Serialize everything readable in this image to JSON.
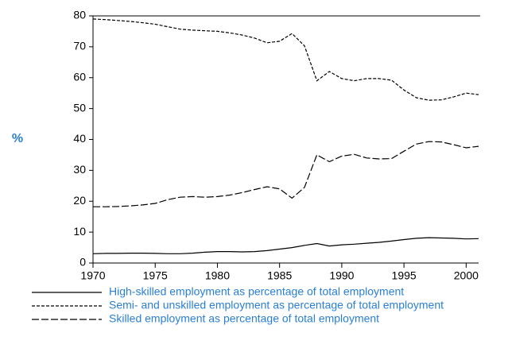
{
  "chart_data": {
    "type": "line",
    "y_label": "%",
    "x": [
      1970,
      1971,
      1972,
      1973,
      1974,
      1975,
      1976,
      1977,
      1978,
      1979,
      1980,
      1981,
      1982,
      1983,
      1984,
      1985,
      1986,
      1987,
      1988,
      1989,
      1990,
      1991,
      1992,
      1993,
      1994,
      1995,
      1996,
      1997,
      1998,
      1999,
      2000,
      2001
    ],
    "xlim": [
      1970,
      2001
    ],
    "xticks": [
      1970,
      1975,
      1980,
      1985,
      1990,
      1995,
      2000
    ],
    "ylim": [
      0,
      80
    ],
    "yticks": [
      0,
      10,
      20,
      30,
      40,
      50,
      60,
      70,
      80
    ],
    "series": [
      {
        "name": "High-skilled employment as percentage of total employment",
        "color": "#000000",
        "dash": "solid",
        "values": [
          3.0,
          3.1,
          3.1,
          3.2,
          3.2,
          3.1,
          3.0,
          3.0,
          3.2,
          3.5,
          3.7,
          3.7,
          3.6,
          3.7,
          4.0,
          4.5,
          5.0,
          5.7,
          6.3,
          5.5,
          5.9,
          6.1,
          6.4,
          6.7,
          7.1,
          7.6,
          8.0,
          8.2,
          8.1,
          8.0,
          7.8,
          7.9
        ]
      },
      {
        "name": "Semi- and unskilled employment as percentage of total employment",
        "color": "#000000",
        "dash": "short",
        "values": [
          79.0,
          78.8,
          78.5,
          78.2,
          77.8,
          77.3,
          76.5,
          75.7,
          75.4,
          75.2,
          75.0,
          74.5,
          73.8,
          72.8,
          71.3,
          71.8,
          74.3,
          70.3,
          59.0,
          62.0,
          59.7,
          59.0,
          59.7,
          59.7,
          59.2,
          56.0,
          53.5,
          52.7,
          52.8,
          53.8,
          55.0,
          54.5
        ]
      },
      {
        "name": "Skilled employment as percentage of total employment",
        "color": "#000000",
        "dash": "long",
        "values": [
          18.2,
          18.2,
          18.3,
          18.5,
          18.8,
          19.3,
          20.5,
          21.3,
          21.5,
          21.3,
          21.5,
          22.0,
          22.8,
          23.8,
          24.7,
          24.0,
          21.0,
          24.5,
          35.0,
          32.8,
          34.6,
          35.2,
          34.0,
          33.7,
          33.8,
          36.2,
          38.5,
          39.3,
          39.2,
          38.3,
          37.3,
          37.8
        ]
      }
    ]
  }
}
